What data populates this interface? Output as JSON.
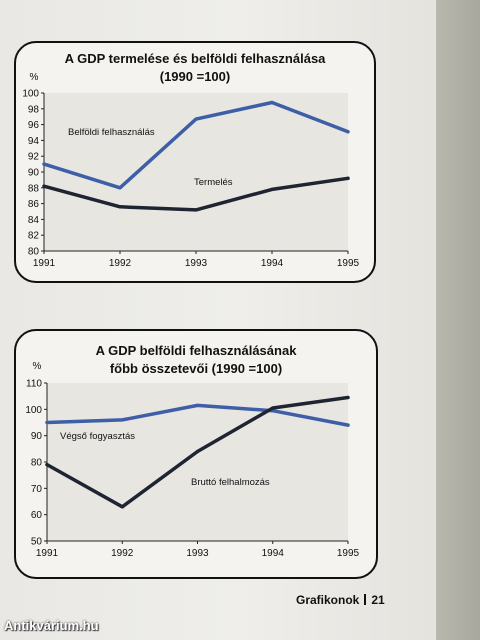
{
  "chart_data": [
    {
      "type": "line",
      "title_line1": "A GDP termelése és belföldi felhasználása",
      "title_line2": "(1990 =100)",
      "ylabel": "%",
      "ylim": [
        80,
        100
      ],
      "yticks": [
        80,
        82,
        84,
        86,
        88,
        90,
        92,
        94,
        96,
        98,
        100
      ],
      "categories": [
        "1991",
        "1992",
        "1993",
        "1994",
        "1995"
      ],
      "series": [
        {
          "name": "Belföldi felhasználás",
          "values": [
            91.0,
            88.0,
            96.7,
            98.8,
            95.1
          ],
          "color": "#3f5ea8"
        },
        {
          "name": "Termelés",
          "values": [
            88.2,
            85.6,
            85.2,
            87.8,
            89.2
          ],
          "color": "#1f2433"
        }
      ],
      "grid": false
    },
    {
      "type": "line",
      "title_line1": "A GDP belföldi felhasználásának",
      "title_line2": "főbb összetevői (1990 =100)",
      "ylabel": "%",
      "ylim": [
        50,
        110
      ],
      "yticks": [
        50,
        60,
        70,
        80,
        90,
        100,
        110
      ],
      "categories": [
        "1991",
        "1992",
        "1993",
        "1994",
        "1995"
      ],
      "series": [
        {
          "name": "Végső fogyasztás",
          "values": [
            95,
            96,
            101.5,
            99.5,
            94
          ],
          "color": "#3f5ea8"
        },
        {
          "name": "Bruttó felhalmozás",
          "values": [
            79,
            63,
            84,
            100.5,
            104.5
          ],
          "color": "#1f2433"
        }
      ],
      "grid": false
    }
  ],
  "footer": {
    "section": "Grafikonok",
    "page": "21"
  },
  "watermark": "Antikvárium.hu"
}
